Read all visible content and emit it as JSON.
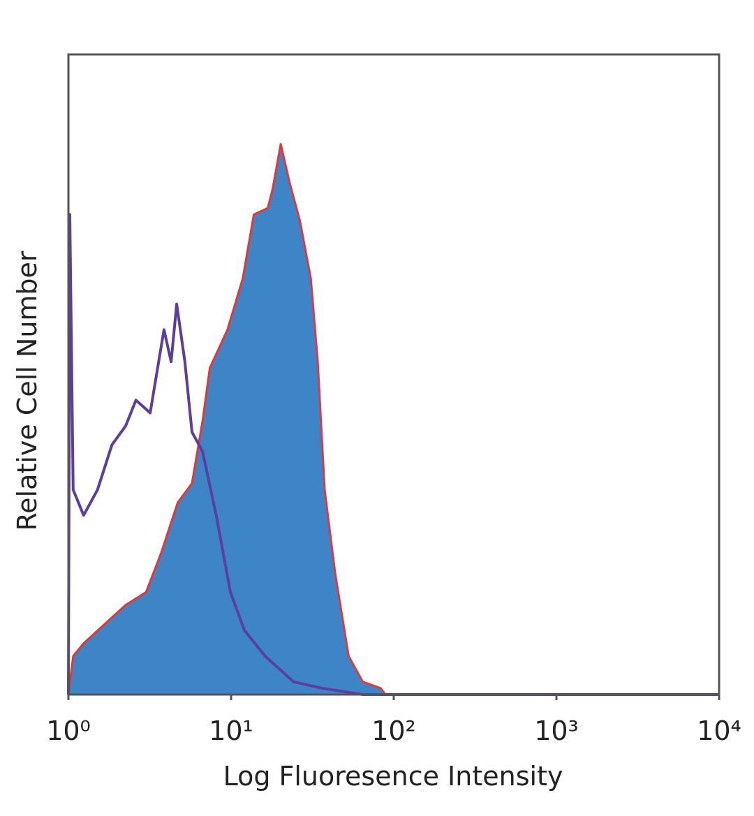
{
  "chart_data": {
    "type": "line",
    "xlabel": "Log Fluoresence Intensity",
    "ylabel": "Relative Cell Number",
    "xscale": "log",
    "xlim": [
      1,
      10000
    ],
    "xticks": [
      {
        "value": 1,
        "label": "10⁰"
      },
      {
        "value": 10,
        "label": "10¹"
      },
      {
        "value": 100,
        "label": "10²"
      },
      {
        "value": 1000,
        "label": "10³"
      },
      {
        "value": 10000,
        "label": "10⁴"
      }
    ],
    "ylim": [
      0,
      100
    ],
    "series": [
      {
        "color": "#3d85c6",
        "edgecolor": "#e0393a",
        "fill": true,
        "x": [
          1.0,
          1.07,
          1.24,
          1.67,
          2.25,
          3.0,
          3.7,
          4.7,
          5.75,
          6.7,
          7.4,
          9.5,
          11.8,
          13.8,
          16.8,
          18.0,
          20.2,
          22.9,
          26.5,
          30.9,
          34.1,
          37.6,
          43.6,
          52.8,
          64.5,
          83.0,
          89.0
        ],
        "values": [
          0,
          6,
          8,
          11,
          14,
          16,
          22,
          30,
          33,
          43,
          51,
          57,
          65,
          75,
          76,
          79,
          86,
          80,
          74,
          65,
          52,
          32,
          19,
          6,
          2,
          1,
          0
        ]
      },
      {
        "color": "#5b3fa0",
        "fill": false,
        "x": [
          1.0,
          1.02,
          1.07,
          1.24,
          1.51,
          1.85,
          2.25,
          2.6,
          3.18,
          3.87,
          4.28,
          4.63,
          5.2,
          5.75,
          6.67,
          8.1,
          9.9,
          12.1,
          16.2,
          24.2,
          36.0,
          64.5,
          10000
        ],
        "values": [
          0,
          75,
          32,
          28,
          32,
          39,
          42,
          46,
          44,
          57,
          52,
          61,
          52,
          41,
          38,
          28,
          16,
          10,
          6,
          2,
          1,
          0,
          0
        ]
      }
    ]
  }
}
